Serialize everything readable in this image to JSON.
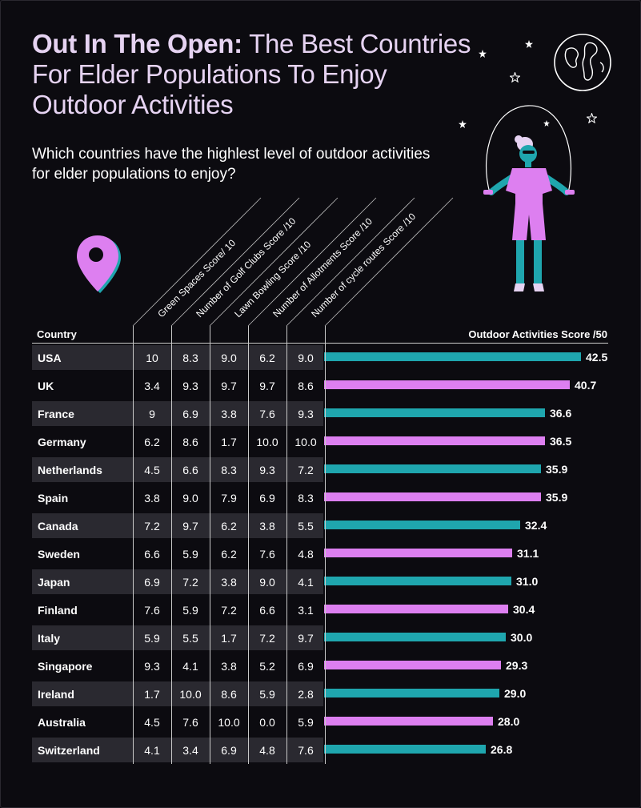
{
  "title_bold": "Out In The Open:",
  "title_rest": " The Best Countries For Elder Populations To Enjoy Outdoor Activities",
  "subtitle": "Which countries have the highlest level of outdoor activities for elder populations to enjoy?",
  "colors": {
    "teal": "#1fa6ae",
    "pink": "#dd7ff0",
    "title": "#e6d3f2"
  },
  "icons": [
    "location-pin-icon",
    "globe-icon",
    "star-icon",
    "person-jump-rope-illustration"
  ],
  "chart_data": {
    "type": "table",
    "columns": [
      "Green Spaces Score/ 10",
      "Number of Golf Clubs Score /10",
      "Lawn Bowling Score /10",
      "Number of Allotments Score /10",
      "Number of cycle routes Score /10"
    ],
    "country_header": "Country",
    "score_header": "Outdoor Activities Score /50",
    "bar_max": 42.5,
    "rows": [
      {
        "country": "USA",
        "values": [
          "10",
          "8.3",
          "9.0",
          "6.2",
          "9.0"
        ],
        "total": 42.5,
        "total_label": "42.5"
      },
      {
        "country": "UK",
        "values": [
          "3.4",
          "9.3",
          "9.7",
          "9.7",
          "8.6"
        ],
        "total": 40.7,
        "total_label": "40.7"
      },
      {
        "country": "France",
        "values": [
          "9",
          "6.9",
          "3.8",
          "7.6",
          "9.3"
        ],
        "total": 36.6,
        "total_label": "36.6"
      },
      {
        "country": "Germany",
        "values": [
          "6.2",
          "8.6",
          "1.7",
          "10.0",
          "10.0"
        ],
        "total": 36.5,
        "total_label": "36.5"
      },
      {
        "country": "Netherlands",
        "values": [
          "4.5",
          "6.6",
          "8.3",
          "9.3",
          "7.2"
        ],
        "total": 35.9,
        "total_label": "35.9"
      },
      {
        "country": "Spain",
        "values": [
          "3.8",
          "9.0",
          "7.9",
          "6.9",
          "8.3"
        ],
        "total": 35.9,
        "total_label": "35.9"
      },
      {
        "country": "Canada",
        "values": [
          "7.2",
          "9.7",
          "6.2",
          "3.8",
          "5.5"
        ],
        "total": 32.4,
        "total_label": "32.4"
      },
      {
        "country": "Sweden",
        "values": [
          "6.6",
          "5.9",
          "6.2",
          "7.6",
          "4.8"
        ],
        "total": 31.1,
        "total_label": "31.1"
      },
      {
        "country": "Japan",
        "values": [
          "6.9",
          "7.2",
          "3.8",
          "9.0",
          "4.1"
        ],
        "total": 31.0,
        "total_label": "31.0"
      },
      {
        "country": "Finland",
        "values": [
          "7.6",
          "5.9",
          "7.2",
          "6.6",
          "3.1"
        ],
        "total": 30.4,
        "total_label": "30.4"
      },
      {
        "country": "Italy",
        "values": [
          "5.9",
          "5.5",
          "1.7",
          "7.2",
          "9.7"
        ],
        "total": 30.0,
        "total_label": "30.0"
      },
      {
        "country": "Singapore",
        "values": [
          "9.3",
          "4.1",
          "3.8",
          "5.2",
          "6.9"
        ],
        "total": 29.3,
        "total_label": "29.3"
      },
      {
        "country": "Ireland",
        "values": [
          "1.7",
          "10.0",
          "8.6",
          "5.9",
          "2.8"
        ],
        "total": 29.0,
        "total_label": "29.0"
      },
      {
        "country": "Australia",
        "values": [
          "4.5",
          "7.6",
          "10.0",
          "0.0",
          "5.9"
        ],
        "total": 28.0,
        "total_label": "28.0"
      },
      {
        "country": "Switzerland",
        "values": [
          "4.1",
          "3.4",
          "6.9",
          "4.8",
          "7.6"
        ],
        "total": 26.8,
        "total_label": "26.8"
      }
    ]
  }
}
